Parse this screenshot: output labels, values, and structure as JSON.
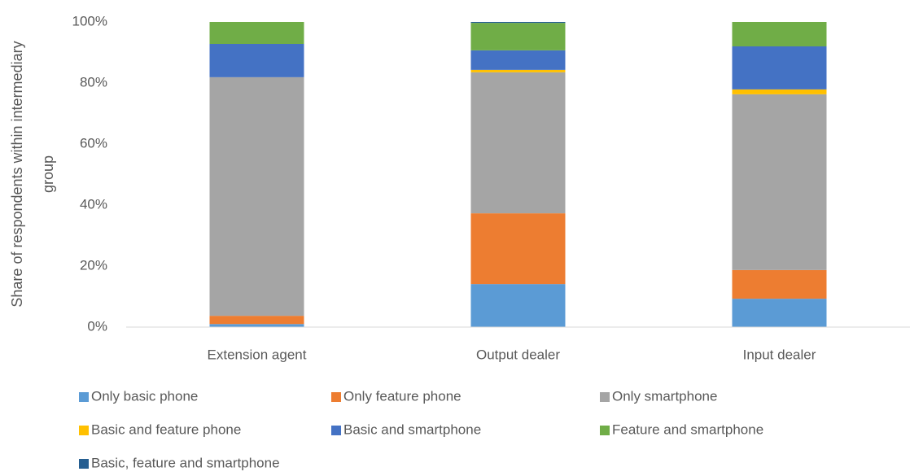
{
  "chart_data": {
    "type": "stacked_bar",
    "ylabel": [
      "Share of respondents within intermediary",
      "group"
    ],
    "categories": [
      "Extension agent",
      "Output dealer",
      "Input dealer"
    ],
    "series": [
      {
        "name": "Only basic phone",
        "color": "#5b9bd5",
        "values": [
          1,
          14.1,
          9.3
        ]
      },
      {
        "name": "Only feature phone",
        "color": "#ed7d31",
        "values": [
          2.7,
          23.2,
          9.4
        ]
      },
      {
        "name": "Only smartphone",
        "color": "#a5a5a5",
        "values": [
          78.2,
          46.2,
          57.6
        ]
      },
      {
        "name": "Basic and feature phone",
        "color": "#ffc000",
        "values": [
          0,
          0.8,
          1.6
        ]
      },
      {
        "name": "Basic and smartphone",
        "color": "#4472c4",
        "values": [
          10.9,
          6.4,
          14.1
        ]
      },
      {
        "name": "Feature and smartphone",
        "color": "#70ad47",
        "values": [
          7.2,
          9.0,
          8.0
        ]
      },
      {
        "name": "Basic, feature and smartphone",
        "color": "#255e91",
        "values": [
          0,
          0.3,
          0
        ]
      }
    ],
    "ylim": [
      0,
      100
    ],
    "yticks": [
      {
        "value": 0,
        "label": "0%"
      },
      {
        "value": 20,
        "label": "20%"
      },
      {
        "value": 40,
        "label": "40%"
      },
      {
        "value": 60,
        "label": "60%"
      },
      {
        "value": 80,
        "label": "80%"
      },
      {
        "value": 100,
        "label": "100%"
      }
    ],
    "grid": false,
    "legend": "bottom"
  }
}
